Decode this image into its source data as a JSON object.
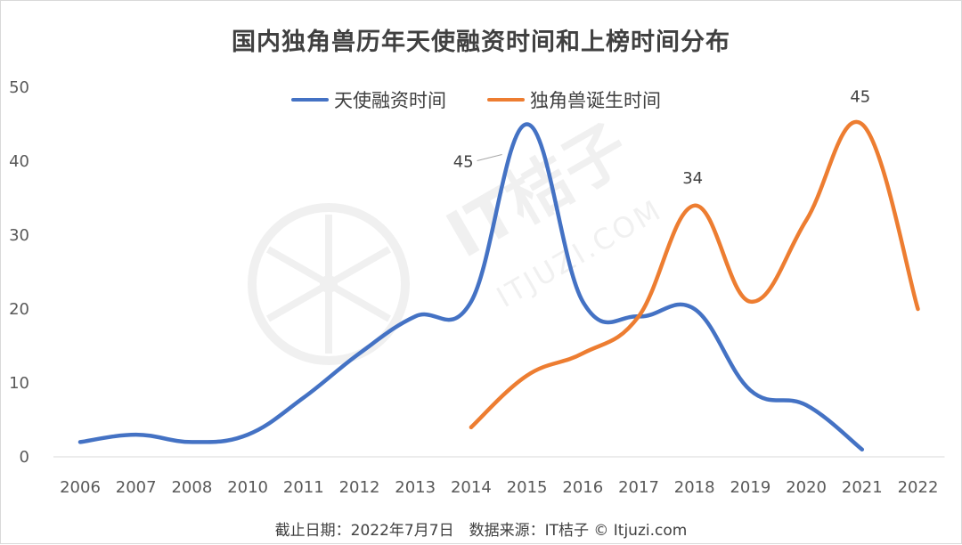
{
  "chart_data": {
    "type": "line",
    "title": "国内独角兽历年天使融资时间和上榜时间分布",
    "categories": [
      "2006",
      "2007",
      "2008",
      "2010",
      "2011",
      "2012",
      "2013",
      "2014",
      "2015",
      "2016",
      "2017",
      "2018",
      "2019",
      "2020",
      "2021",
      "2022"
    ],
    "ylim": [
      0,
      50
    ],
    "yticks": [
      0,
      10,
      20,
      30,
      40,
      50
    ],
    "grid": false,
    "legend_position": "top",
    "smooth": true,
    "series": [
      {
        "name": "天使融资时间",
        "color": "#4472c4",
        "values": [
          2,
          3,
          2,
          3,
          8,
          14,
          19,
          21,
          45,
          21,
          19,
          20,
          9,
          7,
          1,
          null
        ],
        "data_labels": [
          {
            "index": 8,
            "text": "45"
          }
        ]
      },
      {
        "name": "独角兽诞生时间",
        "color": "#ed7d31",
        "values": [
          null,
          null,
          null,
          null,
          null,
          null,
          null,
          4,
          11,
          14,
          19,
          34,
          21,
          32,
          45,
          20
        ],
        "data_labels": [
          {
            "index": 11,
            "text": "34"
          },
          {
            "index": 14,
            "text": "45"
          }
        ]
      }
    ]
  },
  "footer": "截止日期：2022年7月7日　数据来源：IT桔子 © Itjuzi.com",
  "watermark": {
    "brand": "IT桔子",
    "site": "ITJUZI.COM",
    "icon": "orange-slice-icon"
  }
}
